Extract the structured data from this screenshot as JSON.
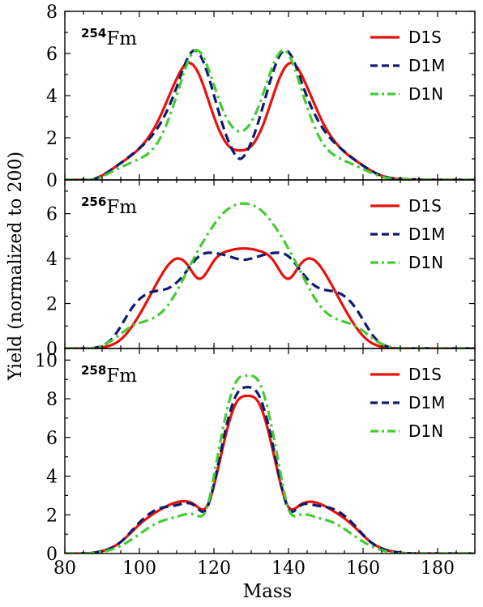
{
  "figure": {
    "shared_xlabel": "Mass",
    "shared_ylabel": "Yield (normalized to 200)"
  },
  "chart_data": [
    {
      "type": "line",
      "panel_label": {
        "sup": "254",
        "base": "Fm"
      },
      "xlim": [
        80,
        190
      ],
      "ylim": [
        0,
        8
      ],
      "yticks": [
        0,
        2,
        4,
        6,
        8
      ],
      "xticks": [
        80,
        100,
        120,
        140,
        160,
        180
      ],
      "legend_position": "top-right",
      "series": [
        {
          "name": "D1S",
          "color": "#e8120c",
          "style": "solid",
          "x": [
            80,
            88,
            95,
            100,
            105,
            110,
            113,
            116,
            120,
            124,
            127,
            130,
            134,
            138,
            141,
            144,
            149,
            154,
            159,
            165,
            172,
            180,
            190
          ],
          "y": [
            0,
            0.05,
            0.8,
            1.5,
            2.8,
            4.8,
            5.55,
            5.0,
            3.0,
            1.6,
            1.4,
            1.6,
            3.0,
            5.0,
            5.55,
            4.8,
            2.8,
            1.5,
            0.8,
            0.2,
            0.03,
            0,
            0
          ]
        },
        {
          "name": "D1M",
          "color": "#0d1a6e",
          "style": "dashed",
          "x": [
            80,
            88,
            95,
            100,
            105,
            110,
            113,
            115,
            118,
            122,
            125,
            127,
            129,
            132,
            136,
            139,
            141,
            144,
            149,
            154,
            159,
            165,
            172,
            180,
            190
          ],
          "y": [
            0,
            0.05,
            0.8,
            1.5,
            2.5,
            4.4,
            5.8,
            6.15,
            5.2,
            2.8,
            1.4,
            1.0,
            1.4,
            2.8,
            5.2,
            6.15,
            5.8,
            4.4,
            2.5,
            1.5,
            0.8,
            0.2,
            0.03,
            0,
            0
          ]
        },
        {
          "name": "D1N",
          "color": "#44cc33",
          "style": "dashdot",
          "x": [
            80,
            88,
            95,
            100,
            105,
            110,
            113,
            115,
            118,
            122,
            125,
            127,
            129,
            132,
            136,
            139,
            141,
            144,
            149,
            154,
            159,
            165,
            172,
            180,
            190
          ],
          "y": [
            0,
            0.03,
            0.6,
            1.0,
            1.8,
            4.0,
            5.6,
            6.15,
            5.5,
            3.5,
            2.5,
            2.3,
            2.5,
            3.5,
            5.5,
            6.15,
            5.6,
            4.0,
            1.8,
            1.0,
            0.6,
            0.15,
            0.02,
            0,
            0
          ]
        }
      ]
    },
    {
      "type": "line",
      "panel_label": {
        "sup": "256",
        "base": "Fm"
      },
      "xlim": [
        80,
        190
      ],
      "ylim": [
        0,
        7.5
      ],
      "yticks": [
        0,
        2,
        4,
        6
      ],
      "xticks": [
        80,
        100,
        120,
        140,
        160,
        180
      ],
      "legend_position": "top-right",
      "series": [
        {
          "name": "D1S",
          "color": "#e8120c",
          "style": "solid",
          "x": [
            80,
            90,
            95,
            100,
            105,
            110,
            113,
            116,
            120,
            124,
            128,
            132,
            136,
            140,
            143,
            146,
            151,
            156,
            161,
            166,
            172,
            180,
            190
          ],
          "y": [
            0,
            0.05,
            0.4,
            1.5,
            3.0,
            4.0,
            3.7,
            3.1,
            3.9,
            4.35,
            4.45,
            4.35,
            3.9,
            3.1,
            3.7,
            4.0,
            3.0,
            1.5,
            0.4,
            0.05,
            0,
            0,
            0
          ]
        },
        {
          "name": "D1M",
          "color": "#0d1a6e",
          "style": "dashed",
          "x": [
            80,
            88,
            93,
            98,
            103,
            108,
            112,
            116,
            120,
            124,
            128,
            132,
            136,
            140,
            144,
            148,
            153,
            158,
            163,
            168,
            174,
            180,
            190
          ],
          "y": [
            0,
            0.03,
            0.5,
            1.8,
            2.5,
            2.7,
            3.3,
            4.1,
            4.25,
            4.1,
            3.95,
            4.1,
            4.25,
            4.1,
            3.3,
            2.7,
            2.5,
            1.8,
            0.5,
            0.03,
            0,
            0,
            0
          ]
        },
        {
          "name": "D1N",
          "color": "#44cc33",
          "style": "dashdot",
          "x": [
            80,
            88,
            93,
            98,
            103,
            108,
            113,
            118,
            123,
            128,
            133,
            138,
            143,
            148,
            153,
            158,
            163,
            168,
            174,
            180,
            190
          ],
          "y": [
            0,
            0.03,
            0.4,
            1.0,
            1.3,
            2.0,
            3.5,
            5.0,
            6.1,
            6.45,
            6.1,
            5.0,
            3.5,
            2.0,
            1.3,
            1.0,
            0.4,
            0.03,
            0,
            0,
            0
          ]
        }
      ]
    },
    {
      "type": "line",
      "panel_label": {
        "sup": "258",
        "base": "Fm"
      },
      "xlim": [
        80,
        190
      ],
      "ylim": [
        0,
        10.6
      ],
      "yticks": [
        0,
        2,
        4,
        6,
        8,
        10
      ],
      "xticks": [
        80,
        100,
        120,
        140,
        160,
        180
      ],
      "legend_position": "top-right",
      "series": [
        {
          "name": "D1S",
          "color": "#e8120c",
          "style": "solid",
          "x": [
            80,
            88,
            95,
            100,
            105,
            110,
            115,
            118,
            120,
            123,
            126,
            129,
            132,
            135,
            138,
            140,
            143,
            147,
            152,
            157,
            162,
            168,
            175,
            182,
            190
          ],
          "y": [
            0,
            0.05,
            0.6,
            1.5,
            2.2,
            2.65,
            2.5,
            2.4,
            3.5,
            6.0,
            7.8,
            8.15,
            7.8,
            6.0,
            3.5,
            2.4,
            2.5,
            2.65,
            2.2,
            1.5,
            0.6,
            0.1,
            0,
            0,
            0
          ]
        },
        {
          "name": "D1M",
          "color": "#0d1a6e",
          "style": "dashed",
          "x": [
            80,
            88,
            95,
            100,
            105,
            110,
            115,
            118,
            120,
            123,
            126,
            129,
            132,
            135,
            138,
            140,
            143,
            147,
            152,
            157,
            162,
            168,
            175,
            182,
            190
          ],
          "y": [
            0,
            0.05,
            0.6,
            1.6,
            2.3,
            2.5,
            2.45,
            2.3,
            3.6,
            6.3,
            8.2,
            8.6,
            8.2,
            6.3,
            3.6,
            2.3,
            2.45,
            2.5,
            2.3,
            1.6,
            0.6,
            0.1,
            0,
            0,
            0
          ]
        },
        {
          "name": "D1N",
          "color": "#44cc33",
          "style": "dashdot",
          "x": [
            80,
            88,
            95,
            100,
            105,
            110,
            115,
            118,
            120,
            123,
            126,
            129,
            132,
            135,
            138,
            140,
            143,
            147,
            152,
            157,
            162,
            168,
            175,
            182,
            190
          ],
          "y": [
            0,
            0.03,
            0.4,
            1.0,
            1.6,
            1.9,
            2.0,
            2.3,
            4.0,
            7.0,
            8.9,
            9.2,
            8.9,
            7.0,
            4.0,
            2.3,
            2.0,
            1.9,
            1.6,
            1.0,
            0.4,
            0.05,
            0,
            0,
            0
          ]
        }
      ]
    }
  ]
}
